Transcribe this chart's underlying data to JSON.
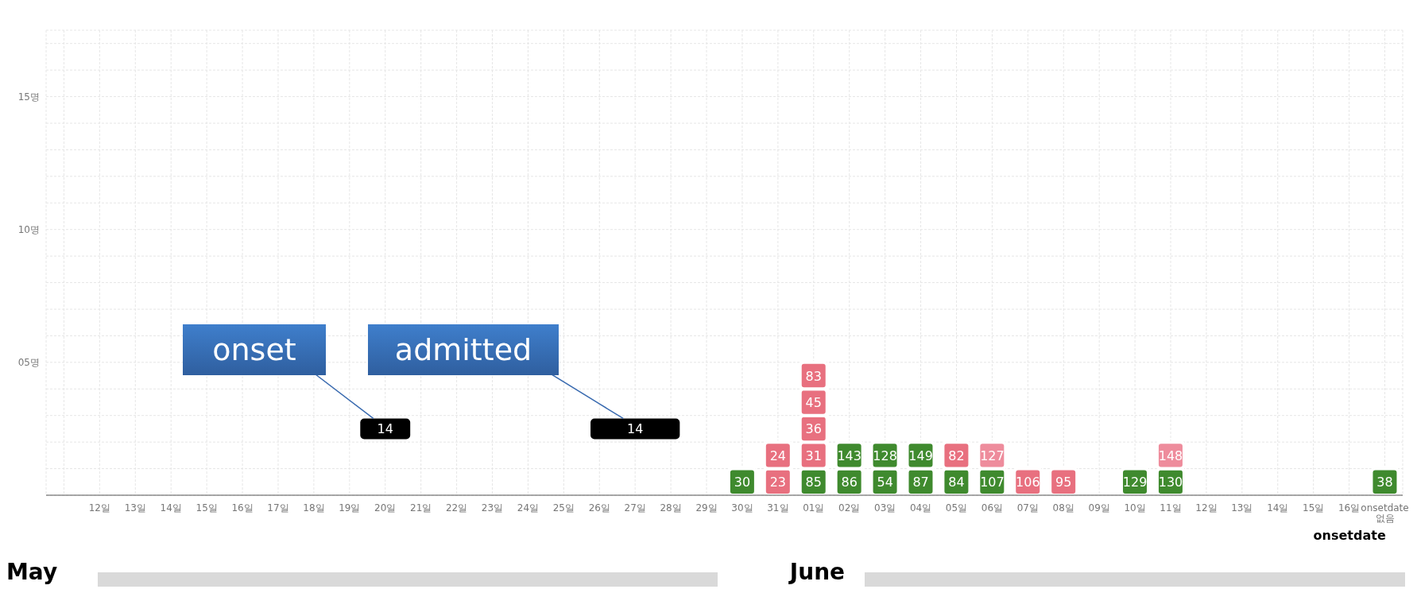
{
  "chart_data": {
    "type": "bar",
    "stacked": true,
    "categories": [
      null,
      "12일",
      "13일",
      "14일",
      "15일",
      "16일",
      "17일",
      "18일",
      "19일",
      "20일",
      "21일",
      "22일",
      "23일",
      "24일",
      "25일",
      "26일",
      "27일",
      "28일",
      "29일",
      "30일",
      "31일",
      "01일",
      "02일",
      "03일",
      "04일",
      "05일",
      "06일",
      "07일",
      "08일",
      "09일",
      "10일",
      "11일",
      "12일",
      "13일",
      "14일",
      "15일",
      "16일",
      "onsetdate 없음"
    ],
    "series": [
      {
        "values": [
          null,
          null,
          null,
          null,
          null,
          null,
          null,
          null,
          null,
          null,
          null,
          null,
          null,
          null,
          null,
          null,
          null,
          null,
          null,
          1,
          1,
          1,
          1,
          1,
          1,
          1,
          1,
          1,
          1,
          null,
          1,
          1,
          null,
          null,
          null,
          null,
          null,
          1
        ],
        "colors": [
          null,
          null,
          null,
          null,
          null,
          null,
          null,
          null,
          null,
          null,
          null,
          null,
          null,
          null,
          null,
          null,
          null,
          null,
          null,
          "#3f8a2e",
          "#e8707f",
          "#3f8a2e",
          "#3f8a2e",
          "#3f8a2e",
          "#3f8a2e",
          "#3f8a2e",
          "#3f8a2e",
          "#e8707f",
          "#e8707f",
          null,
          "#3f8a2e",
          "#3f8a2e",
          null,
          null,
          null,
          null,
          null,
          "#3f8a2e"
        ]
      },
      {
        "values": [
          null,
          null,
          null,
          null,
          null,
          null,
          null,
          null,
          null,
          null,
          null,
          null,
          null,
          null,
          null,
          null,
          null,
          null,
          null,
          null,
          1,
          1,
          1,
          1,
          1,
          1,
          1,
          null,
          null,
          null,
          null,
          1,
          null,
          null,
          null,
          null,
          null,
          null
        ],
        "colors": [
          null,
          null,
          null,
          null,
          null,
          null,
          null,
          null,
          null,
          null,
          null,
          null,
          null,
          null,
          null,
          null,
          null,
          null,
          null,
          null,
          "#e8707f",
          "#e8707f",
          "#3f8a2e",
          "#3f8a2e",
          "#3f8a2e",
          "#e8707f",
          "#ee8c9c",
          null,
          null,
          null,
          null,
          "#ee8c9c",
          null,
          null,
          null,
          null,
          null,
          null
        ]
      },
      {
        "values": [
          null,
          null,
          null,
          null,
          null,
          null,
          null,
          null,
          null,
          null,
          null,
          null,
          null,
          null,
          null,
          null,
          null,
          null,
          null,
          null,
          null,
          1,
          null,
          null,
          null,
          null,
          null,
          null,
          null,
          null,
          null,
          null,
          null,
          null,
          null,
          null,
          null,
          null
        ],
        "colors": [
          null,
          null,
          null,
          null,
          null,
          null,
          null,
          null,
          null,
          null,
          null,
          null,
          null,
          null,
          null,
          null,
          null,
          null,
          null,
          null,
          null,
          "#e8707f",
          null,
          null,
          null,
          null,
          null,
          null,
          null,
          null,
          null,
          null,
          null,
          null,
          null,
          null,
          null,
          null
        ]
      },
      {
        "values": [
          null,
          null,
          null,
          null,
          null,
          null,
          null,
          null,
          null,
          null,
          null,
          null,
          null,
          null,
          null,
          null,
          null,
          null,
          null,
          null,
          null,
          1,
          null,
          null,
          null,
          null,
          null,
          null,
          null,
          null,
          null,
          null,
          null,
          null,
          null,
          null,
          null,
          null
        ],
        "colors": [
          null,
          null,
          null,
          null,
          null,
          null,
          null,
          null,
          null,
          null,
          null,
          null,
          null,
          null,
          null,
          null,
          null,
          null,
          null,
          null,
          null,
          "#e8707f",
          null,
          null,
          null,
          null,
          null,
          null,
          null,
          null,
          null,
          null,
          null,
          null,
          null,
          null,
          null,
          null
        ]
      },
      {
        "values": [
          null,
          null,
          null,
          null,
          null,
          null,
          null,
          null,
          null,
          null,
          null,
          null,
          null,
          null,
          null,
          null,
          null,
          null,
          null,
          null,
          null,
          1,
          null,
          null,
          null,
          null,
          null,
          null,
          null,
          null,
          null,
          null,
          null,
          null,
          null,
          null,
          null,
          null
        ],
        "colors": [
          null,
          null,
          null,
          null,
          null,
          null,
          null,
          null,
          null,
          null,
          null,
          null,
          null,
          null,
          null,
          null,
          null,
          null,
          null,
          null,
          null,
          "#e8707f",
          null,
          null,
          null,
          null,
          null,
          null,
          null,
          null,
          null,
          null,
          null,
          null,
          null,
          null,
          null,
          null
        ]
      }
    ],
    "ylim": [
      0,
      17.5
    ],
    "yticks": [
      {
        "value": 1,
        "label": null
      },
      {
        "value": 2,
        "label": null
      },
      {
        "value": 3,
        "label": null
      },
      {
        "value": 4,
        "label": null
      },
      {
        "value": 5,
        "label": "05명"
      },
      {
        "value": 6,
        "label": null
      },
      {
        "value": 7,
        "label": null
      },
      {
        "value": 8,
        "label": null
      },
      {
        "value": 9,
        "label": null
      },
      {
        "value": 10,
        "label": "10명"
      },
      {
        "value": 11,
        "label": null
      },
      {
        "value": 12,
        "label": null
      },
      {
        "value": 13,
        "label": null
      },
      {
        "value": 14,
        "label": null
      },
      {
        "value": 15,
        "label": "15명"
      },
      {
        "value": 16,
        "label": null
      },
      {
        "value": 17,
        "label": null
      }
    ],
    "grid": true,
    "annotations": [
      "onset",
      "admitted",
      "14",
      "14",
      "May",
      "June",
      "onsetdate",
      {
        "text": "30",
        "x": "30일",
        "y": 1
      },
      {
        "text": "23",
        "x": "31일",
        "y": 1
      },
      {
        "text": "24",
        "x": "31일",
        "y": 2
      },
      {
        "text": "85",
        "x": "01일",
        "y": 1
      },
      {
        "text": "31",
        "x": "01일",
        "y": 2
      },
      {
        "text": "36",
        "x": "01일",
        "y": 3
      },
      {
        "text": "45",
        "x": "01일",
        "y": 4
      },
      {
        "text": "83",
        "x": "01일",
        "y": 5
      },
      {
        "text": "86",
        "x": "02일",
        "y": 1
      },
      {
        "text": "143",
        "x": "02일",
        "y": 2
      },
      {
        "text": "54",
        "x": "03일",
        "y": 1
      },
      {
        "text": "128",
        "x": "03일",
        "y": 2
      },
      {
        "text": "87",
        "x": "04일",
        "y": 1
      },
      {
        "text": "149",
        "x": "04일",
        "y": 2
      },
      {
        "text": "84",
        "x": "05일",
        "y": 1
      },
      {
        "text": "82",
        "x": "05일",
        "y": 2
      },
      {
        "text": "107",
        "x": "06일",
        "y": 1
      },
      {
        "text": "127",
        "x": "06일",
        "y": 2
      },
      {
        "text": "106",
        "x": "07일",
        "y": 1
      },
      {
        "text": "95",
        "x": "08일",
        "y": 1
      },
      {
        "text": "129",
        "x": "10일",
        "y": 1
      },
      {
        "text": "130",
        "x": "11일",
        "y": 1
      },
      {
        "text": "148",
        "x": "11일",
        "y": 2
      },
      {
        "text": "38",
        "x": "onsetdate 없음",
        "y": 1
      }
    ]
  }
}
